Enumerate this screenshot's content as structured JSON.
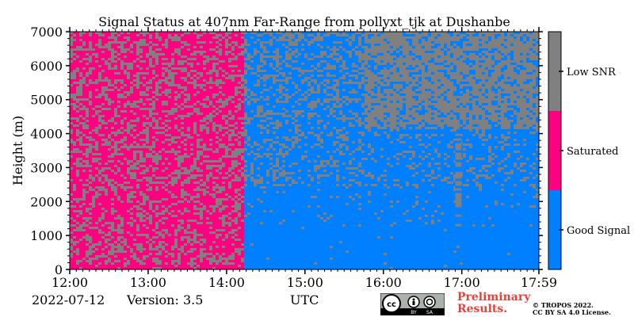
{
  "chart_data": {
    "type": "heatmap",
    "title": "Signal Status at 407nm Far-Range from pollyxt_tjk at Dushanbe",
    "ylabel": "Height (m)",
    "xlabel": "UTC",
    "ylim": [
      0,
      7000
    ],
    "yticks": [
      "0",
      "1000",
      "2000",
      "3000",
      "4000",
      "5000",
      "6000",
      "7000"
    ],
    "xlim": [
      "12:00",
      "17:59"
    ],
    "xticks": [
      "12:00",
      "13:00",
      "14:00",
      "15:00",
      "16:00",
      "17:00",
      "17:59"
    ],
    "categories": [
      "Good Signal",
      "Saturated",
      "Low SNR"
    ],
    "colors": {
      "Good Signal": "#0080ff",
      "Saturated": "#ff0080",
      "Low SNR": "#808080"
    },
    "regions": [
      {
        "from": "12:00",
        "to": "14:12",
        "dominant": "Saturated",
        "mixed_with": "Low SNR"
      },
      {
        "from": "14:12",
        "to": "17:59",
        "below_m": 1500,
        "dominant": "Good Signal"
      },
      {
        "from": "14:12",
        "to": "15:45",
        "above_m": 1500,
        "dominant": "Good Signal",
        "mixed_with": "Low SNR"
      },
      {
        "from": "15:45",
        "to": "17:59",
        "above_m": 4200,
        "dominant": "Low SNR",
        "mixed_with": "Good Signal"
      }
    ]
  },
  "footer": {
    "date": "2022-07-12",
    "version": "Version: 3.5",
    "preliminary_line1": "Preliminary",
    "preliminary_line2": "Results.",
    "credit_line1": "© TROPOS 2022.",
    "credit_line2": "CC BY SA 4.0 License."
  },
  "badge": {
    "cc": "cc",
    "by": "BY",
    "sa": "SA"
  }
}
